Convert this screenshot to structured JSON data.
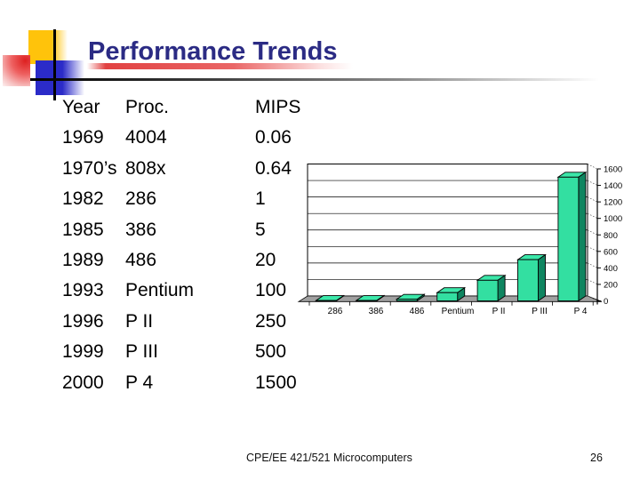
{
  "title": "Performance Trends",
  "table": {
    "columns": [
      "Year",
      "Proc.",
      "MIPS"
    ],
    "rows": [
      [
        "1969",
        "4004",
        "0.06"
      ],
      [
        "1970’s",
        "808x",
        "0.64"
      ],
      [
        "1982",
        "286",
        "1"
      ],
      [
        "1985",
        "386",
        "5"
      ],
      [
        "1989",
        "486",
        "20"
      ],
      [
        "1993",
        "Pentium",
        "100"
      ],
      [
        "1996",
        "P II",
        "250"
      ],
      [
        "1999",
        "P III",
        "500"
      ],
      [
        "2000",
        "P 4",
        "1500"
      ]
    ]
  },
  "chart_data": {
    "type": "bar",
    "variant": "3d-column",
    "title": "",
    "xlabel": "",
    "ylabel": "",
    "value_label": "MIPS",
    "categories": [
      "286",
      "386",
      "486",
      "Pentium",
      "P II",
      "P III",
      "P 4"
    ],
    "values": [
      1,
      5,
      20,
      100,
      250,
      500,
      1500
    ],
    "ylim": [
      0,
      1600
    ],
    "yticks": [
      0,
      200,
      400,
      600,
      800,
      1000,
      1200,
      1400,
      1600
    ],
    "y_axis_position": "right",
    "gridlines": "horizontal",
    "legend": "none",
    "colors": {
      "bar_front": "#33DFA1",
      "bar_top": "#3BE7A9",
      "bar_side": "#0F8560",
      "floor": "#A0A0A0",
      "wall": "#FFFFFF",
      "axis": "#000000"
    }
  },
  "footer": {
    "course": "CPE/EE 421/521 Microcomputers",
    "page_number": "26"
  },
  "theme": {
    "title_color": "#2B2B84",
    "accent_yellow": "#FFC30B",
    "accent_blue": "#2B2BC8",
    "accent_red": "#DD2020"
  }
}
